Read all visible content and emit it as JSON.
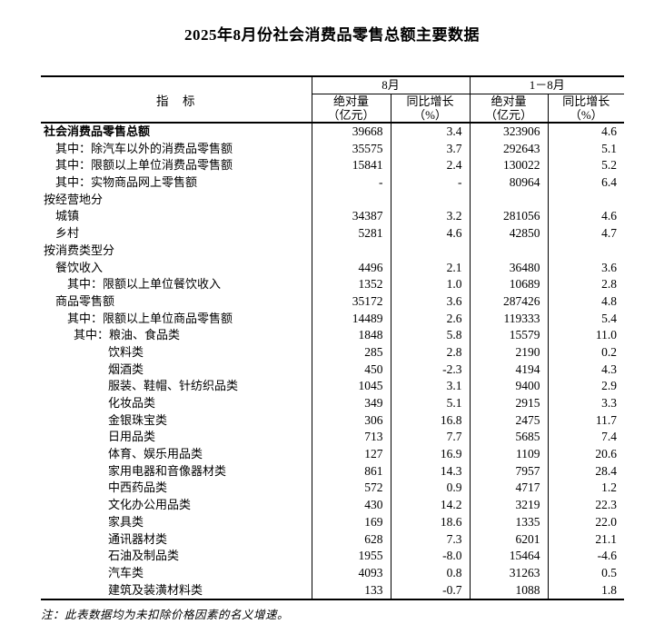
{
  "page": {
    "title": "2025年8月份社会消费品零售总额主要数据",
    "note": "注：此表数据均为未扣除价格因素的名义增速。"
  },
  "colors": {
    "text": "#000000",
    "background": "#ffffff",
    "border": "#000000"
  },
  "table": {
    "indicator_header": "指　标",
    "groups": [
      {
        "label": "8月"
      },
      {
        "label": "1－8月"
      }
    ],
    "measures": {
      "abs_line1": "绝对量",
      "abs_line2": "（亿元）",
      "yoy_line1": "同比增长",
      "yoy_line2": "（%）"
    },
    "rows": [
      {
        "label": "社会消费品零售总额",
        "indent": 0,
        "bold": true,
        "values": [
          "39668",
          "3.4",
          "323906",
          "4.6"
        ]
      },
      {
        "label": "其中：除汽车以外的消费品零售额",
        "indent": 1,
        "bold": false,
        "values": [
          "35575",
          "3.7",
          "292643",
          "5.1"
        ]
      },
      {
        "label": "其中：限额以上单位消费品零售额",
        "indent": 1,
        "bold": false,
        "values": [
          "15841",
          "2.4",
          "130022",
          "5.2"
        ]
      },
      {
        "label": "其中：实物商品网上零售额",
        "indent": 1,
        "bold": false,
        "values": [
          "-",
          "-",
          "80964",
          "6.4"
        ]
      },
      {
        "label": "按经营地分",
        "indent": 0,
        "bold": false,
        "values": [
          "",
          "",
          "",
          ""
        ]
      },
      {
        "label": "城镇",
        "indent": 1,
        "bold": false,
        "values": [
          "34387",
          "3.2",
          "281056",
          "4.6"
        ]
      },
      {
        "label": "乡村",
        "indent": 1,
        "bold": false,
        "values": [
          "5281",
          "4.6",
          "42850",
          "4.7"
        ]
      },
      {
        "label": "按消费类型分",
        "indent": 0,
        "bold": false,
        "values": [
          "",
          "",
          "",
          ""
        ]
      },
      {
        "label": "餐饮收入",
        "indent": 1,
        "bold": false,
        "values": [
          "4496",
          "2.1",
          "36480",
          "3.6"
        ]
      },
      {
        "label": "其中：限额以上单位餐饮收入",
        "indent": 2,
        "bold": false,
        "values": [
          "1352",
          "1.0",
          "10689",
          "2.8"
        ]
      },
      {
        "label": "商品零售额",
        "indent": 1,
        "bold": false,
        "values": [
          "35172",
          "3.6",
          "287426",
          "4.8"
        ]
      },
      {
        "label": "其中：限额以上单位商品零售额",
        "indent": 2,
        "bold": false,
        "values": [
          "14489",
          "2.6",
          "119333",
          "5.4"
        ]
      },
      {
        "label": "其中：粮油、食品类",
        "indent": 3,
        "bold": false,
        "values": [
          "1848",
          "5.8",
          "15579",
          "11.0"
        ]
      },
      {
        "label": "饮料类",
        "indent": 4,
        "bold": false,
        "values": [
          "285",
          "2.8",
          "2190",
          "0.2"
        ]
      },
      {
        "label": "烟酒类",
        "indent": 4,
        "bold": false,
        "values": [
          "450",
          "-2.3",
          "4194",
          "4.3"
        ]
      },
      {
        "label": "服装、鞋帽、针纺织品类",
        "indent": 4,
        "bold": false,
        "values": [
          "1045",
          "3.1",
          "9400",
          "2.9"
        ]
      },
      {
        "label": "化妆品类",
        "indent": 4,
        "bold": false,
        "values": [
          "349",
          "5.1",
          "2915",
          "3.3"
        ]
      },
      {
        "label": "金银珠宝类",
        "indent": 4,
        "bold": false,
        "values": [
          "306",
          "16.8",
          "2475",
          "11.7"
        ]
      },
      {
        "label": "日用品类",
        "indent": 4,
        "bold": false,
        "values": [
          "713",
          "7.7",
          "5685",
          "7.4"
        ]
      },
      {
        "label": "体育、娱乐用品类",
        "indent": 4,
        "bold": false,
        "values": [
          "127",
          "16.9",
          "1109",
          "20.6"
        ]
      },
      {
        "label": "家用电器和音像器材类",
        "indent": 4,
        "bold": false,
        "values": [
          "861",
          "14.3",
          "7957",
          "28.4"
        ]
      },
      {
        "label": "中西药品类",
        "indent": 4,
        "bold": false,
        "values": [
          "572",
          "0.9",
          "4717",
          "1.2"
        ]
      },
      {
        "label": "文化办公用品类",
        "indent": 4,
        "bold": false,
        "values": [
          "430",
          "14.2",
          "3219",
          "22.3"
        ]
      },
      {
        "label": "家具类",
        "indent": 4,
        "bold": false,
        "values": [
          "169",
          "18.6",
          "1335",
          "22.0"
        ]
      },
      {
        "label": "通讯器材类",
        "indent": 4,
        "bold": false,
        "values": [
          "628",
          "7.3",
          "6201",
          "21.1"
        ]
      },
      {
        "label": "石油及制品类",
        "indent": 4,
        "bold": false,
        "values": [
          "1955",
          "-8.0",
          "15464",
          "-4.6"
        ]
      },
      {
        "label": "汽车类",
        "indent": 4,
        "bold": false,
        "values": [
          "4093",
          "0.8",
          "31263",
          "0.5"
        ]
      },
      {
        "label": "建筑及装潢材料类",
        "indent": 4,
        "bold": false,
        "values": [
          "133",
          "-0.7",
          "1088",
          "1.8"
        ]
      }
    ]
  }
}
